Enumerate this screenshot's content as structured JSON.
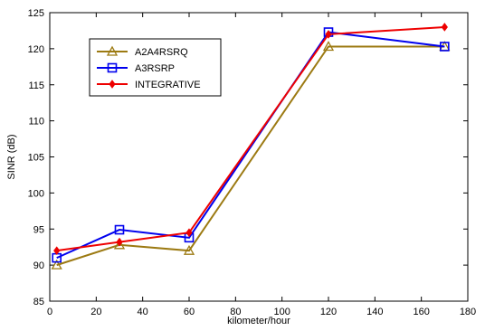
{
  "chart_data": {
    "type": "line",
    "xlabel": "kilometer/hour",
    "ylabel": "SINR (dB)",
    "xlim": [
      0,
      180
    ],
    "ylim": [
      85,
      125
    ],
    "xticks": [
      0,
      20,
      40,
      60,
      80,
      100,
      120,
      140,
      160,
      180
    ],
    "yticks": [
      85,
      90,
      95,
      100,
      105,
      110,
      115,
      120,
      125
    ],
    "grid": false,
    "legend_position": "top-left",
    "series": [
      {
        "name": "A2A4RSRQ",
        "color": "#9c7a12",
        "marker": "triangle",
        "x": [
          3,
          30,
          60,
          120,
          170
        ],
        "y": [
          90.0,
          92.8,
          92.0,
          120.3,
          120.3
        ]
      },
      {
        "name": "A3RSRP",
        "color": "#0000ee",
        "marker": "square",
        "x": [
          3,
          30,
          60,
          120,
          170
        ],
        "y": [
          91.0,
          94.9,
          93.8,
          122.3,
          120.3
        ]
      },
      {
        "name": "INTEGRATIVE",
        "color": "#ee0000",
        "marker": "diamond",
        "x": [
          3,
          30,
          60,
          120,
          170
        ],
        "y": [
          92.0,
          93.2,
          94.5,
          122.0,
          123.0
        ]
      }
    ]
  }
}
